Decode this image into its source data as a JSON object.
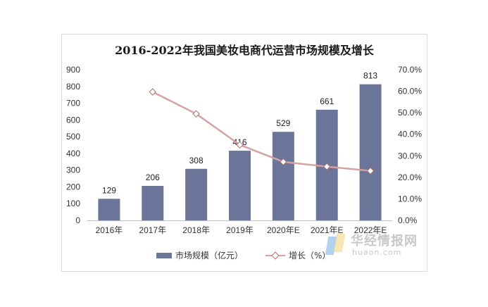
{
  "chart_data": {
    "type": "bar",
    "title": "2016-2022年我国美妆电商代运营市场规模及增长",
    "categories": [
      "2016年",
      "2017年",
      "2018年",
      "2019年",
      "2020年E",
      "2021年E",
      "2022年E"
    ],
    "series": [
      {
        "name": "市场规模（亿元）",
        "type": "bar",
        "axis": "left",
        "color": "#6b7499",
        "values": [
          129,
          206,
          308,
          416,
          529,
          661,
          813
        ]
      },
      {
        "name": "增长（%）",
        "type": "line",
        "axis": "right",
        "color": "#d4a3a3",
        "values": [
          null,
          0.597,
          0.495,
          0.351,
          0.272,
          0.25,
          0.23
        ]
      }
    ],
    "y_left": {
      "min": 0,
      "max": 900,
      "step": 100
    },
    "y_right": {
      "min": 0,
      "max": 0.7,
      "step": 0.1,
      "format": "percent1"
    },
    "legend_position": "bottom",
    "grid": false
  },
  "watermark": {
    "name": "华经情报网",
    "domain": "huaon.com"
  }
}
